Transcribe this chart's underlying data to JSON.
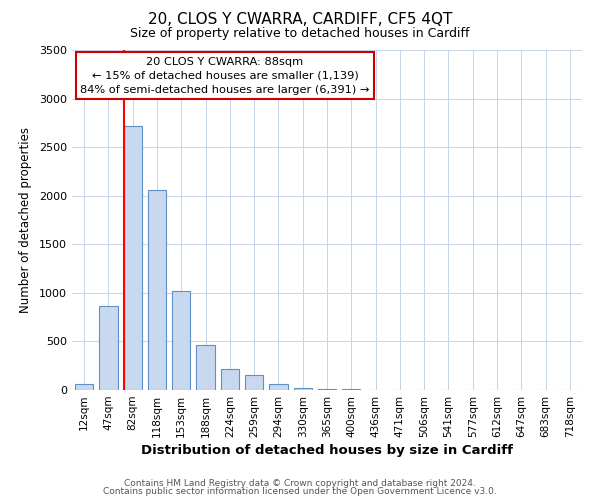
{
  "title": "20, CLOS Y CWARRA, CARDIFF, CF5 4QT",
  "subtitle": "Size of property relative to detached houses in Cardiff",
  "xlabel": "Distribution of detached houses by size in Cardiff",
  "ylabel": "Number of detached properties",
  "bar_labels": [
    "12sqm",
    "47sqm",
    "82sqm",
    "118sqm",
    "153sqm",
    "188sqm",
    "224sqm",
    "259sqm",
    "294sqm",
    "330sqm",
    "365sqm",
    "400sqm",
    "436sqm",
    "471sqm",
    "506sqm",
    "541sqm",
    "577sqm",
    "612sqm",
    "647sqm",
    "683sqm",
    "718sqm"
  ],
  "bar_values": [
    60,
    860,
    2720,
    2060,
    1020,
    460,
    215,
    150,
    60,
    25,
    15,
    10,
    5,
    3,
    2,
    1,
    1,
    1,
    1,
    1,
    1
  ],
  "bar_color": "#c8d9ef",
  "bar_edgecolor": "#6090c8",
  "ylim": [
    0,
    3500
  ],
  "yticks": [
    0,
    500,
    1000,
    1500,
    2000,
    2500,
    3000,
    3500
  ],
  "red_line_index": 2,
  "annotation_title": "20 CLOS Y CWARRA: 88sqm",
  "annotation_line1": "← 15% of detached houses are smaller (1,139)",
  "annotation_line2": "84% of semi-detached houses are larger (6,391) →",
  "annotation_box_facecolor": "#ffffff",
  "annotation_box_edgecolor": "#cc0000",
  "footer1": "Contains HM Land Registry data © Crown copyright and database right 2024.",
  "footer2": "Contains public sector information licensed under the Open Government Licence v3.0.",
  "background_color": "#ffffff",
  "grid_color": "#c5d5e8"
}
